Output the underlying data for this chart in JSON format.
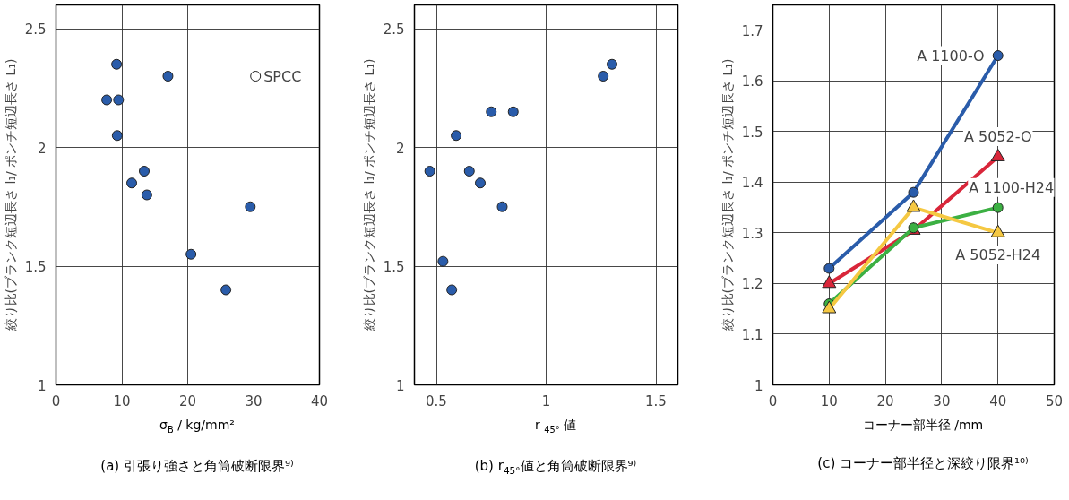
{
  "chart_data": [
    {
      "type": "scatter",
      "title": "(a) 引張り強さと角筒破断限界⁹⁾",
      "xlabel": "σ$_{B}$ / kg/mm²",
      "ylabel": "絞り比(ブランク短辺長さ l₁/ ポンチ短辺長さ L₁)",
      "xlim": [
        0,
        40
      ],
      "ylim": [
        1,
        2.6
      ],
      "xticks": [
        0,
        10,
        20,
        30,
        40
      ],
      "yticks": [
        1,
        1.5,
        2,
        2.5
      ],
      "grid": true,
      "marker": "circle",
      "series": [
        {
          "color": "#2a5caa",
          "x": [
            7.7,
            9.2,
            9.5,
            9.3,
            11.5,
            13.4,
            13.8,
            17,
            20.5,
            25.8,
            29.5
          ],
          "values": [
            2.2,
            2.35,
            2.2,
            2.05,
            1.85,
            1.9,
            1.8,
            2.3,
            1.55,
            1.4,
            1.75
          ]
        },
        {
          "name": "SPCC",
          "color": "#ffffff",
          "x": [
            30.3
          ],
          "values": [
            2.3
          ]
        }
      ]
    },
    {
      "type": "scatter",
      "title": "(b) r$_{45°}$値と角筒破断限界⁹⁾",
      "xlabel": "r $_{45°}$ 値",
      "ylabel": "絞り比(ブランク短辺長さ l₁/ ポンチ短辺長さ L₁)",
      "xlim": [
        0.4,
        1.6
      ],
      "ylim": [
        1,
        2.6
      ],
      "xticks": [
        0.5,
        1,
        1.5
      ],
      "yticks": [
        1,
        1.5,
        2,
        2.5
      ],
      "grid": true,
      "marker": "circle",
      "series": [
        {
          "color": "#2a5caa",
          "x": [
            0.47,
            0.53,
            0.57,
            0.59,
            0.65,
            0.7,
            0.75,
            0.8,
            0.85,
            1.26,
            1.3
          ],
          "values": [
            1.9,
            1.52,
            1.4,
            2.05,
            1.9,
            1.85,
            2.15,
            1.75,
            2.15,
            2.3,
            2.35
          ]
        }
      ]
    },
    {
      "type": "line",
      "title": "(c) コーナー部半径と深絞り限界¹⁰⁾",
      "xlabel": "コーナー部半径 /mm",
      "ylabel": "絞り比(ブランク短辺長さ l₁/ ポンチ短辺長さ L₁)",
      "xlim": [
        0,
        50
      ],
      "ylim": [
        1,
        1.75
      ],
      "xticks": [
        0,
        10,
        20,
        30,
        40,
        50
      ],
      "yticks": [
        1,
        1.1,
        1.2,
        1.3,
        1.4,
        1.5,
        1.6,
        1.7
      ],
      "grid": true,
      "line_style": "solid",
      "x": [
        10,
        25,
        40
      ],
      "series": [
        {
          "name": "A 1100-O",
          "color": "#2a5caa",
          "marker": "circle",
          "values": [
            1.23,
            1.38,
            1.65
          ]
        },
        {
          "name": "A 5052-O",
          "color": "#d9263a",
          "marker": "triangle",
          "values": [
            1.2,
            1.305,
            1.45
          ]
        },
        {
          "name": "A 1100-H24",
          "color": "#3cb043",
          "marker": "circle",
          "values": [
            1.16,
            1.31,
            1.35
          ]
        },
        {
          "name": "A 5052-H24",
          "color": "#f5c842",
          "marker": "triangle",
          "values": [
            1.15,
            1.35,
            1.3
          ]
        }
      ]
    }
  ]
}
